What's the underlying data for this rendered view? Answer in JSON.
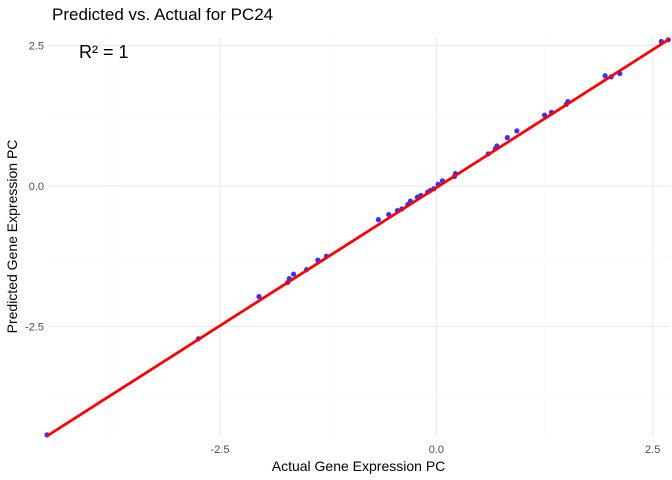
{
  "chart_data": {
    "type": "scatter",
    "title": "Predicted vs. Actual for PC24",
    "xlabel": "Actual Gene Expression PC",
    "ylabel": "Predicted Gene Expression PC",
    "annotation": "R² = 1",
    "xlim": [
      -4.5,
      2.7
    ],
    "ylim": [
      -4.45,
      2.65
    ],
    "x_ticks": [
      -2.5,
      0.0,
      2.5
    ],
    "x_tick_labels": [
      "-2.5",
      "0.0",
      "2.5"
    ],
    "y_ticks": [
      -2.5,
      0.0,
      2.5
    ],
    "y_tick_labels": [
      "-2.5",
      "0.0",
      "2.5"
    ],
    "grid": true,
    "legend": "none",
    "point_color": "#3333ff",
    "line_color": "#ff0000",
    "fit_line": {
      "x": [
        -4.5,
        2.7
      ],
      "y": [
        -4.45,
        2.62
      ]
    },
    "points": [
      {
        "x": -4.5,
        "y": -4.43
      },
      {
        "x": -2.75,
        "y": -2.72
      },
      {
        "x": -2.05,
        "y": -1.97
      },
      {
        "x": -1.72,
        "y": -1.72
      },
      {
        "x": -1.7,
        "y": -1.65
      },
      {
        "x": -1.65,
        "y": -1.57
      },
      {
        "x": -1.5,
        "y": -1.49
      },
      {
        "x": -1.37,
        "y": -1.32
      },
      {
        "x": -1.27,
        "y": -1.25
      },
      {
        "x": -0.67,
        "y": -0.6
      },
      {
        "x": -0.55,
        "y": -0.51
      },
      {
        "x": -0.45,
        "y": -0.44
      },
      {
        "x": -0.4,
        "y": -0.41
      },
      {
        "x": -0.33,
        "y": -0.33
      },
      {
        "x": -0.3,
        "y": -0.27
      },
      {
        "x": -0.22,
        "y": -0.2
      },
      {
        "x": -0.18,
        "y": -0.17
      },
      {
        "x": -0.1,
        "y": -0.11
      },
      {
        "x": -0.07,
        "y": -0.08
      },
      {
        "x": -0.03,
        "y": -0.05
      },
      {
        "x": 0.02,
        "y": 0.03
      },
      {
        "x": 0.07,
        "y": 0.09
      },
      {
        "x": 0.21,
        "y": 0.17
      },
      {
        "x": 0.22,
        "y": 0.22
      },
      {
        "x": 0.6,
        "y": 0.57
      },
      {
        "x": 0.68,
        "y": 0.66
      },
      {
        "x": 0.7,
        "y": 0.71
      },
      {
        "x": 0.82,
        "y": 0.86
      },
      {
        "x": 0.93,
        "y": 0.98
      },
      {
        "x": 1.25,
        "y": 1.26
      },
      {
        "x": 1.33,
        "y": 1.31
      },
      {
        "x": 1.5,
        "y": 1.45
      },
      {
        "x": 1.52,
        "y": 1.5
      },
      {
        "x": 1.95,
        "y": 1.96
      },
      {
        "x": 2.02,
        "y": 1.94
      },
      {
        "x": 2.12,
        "y": 2.0
      },
      {
        "x": 2.6,
        "y": 2.57
      },
      {
        "x": 2.68,
        "y": 2.6
      }
    ]
  }
}
